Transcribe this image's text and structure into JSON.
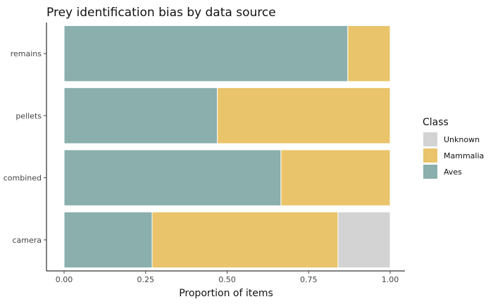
{
  "chart_data": {
    "type": "bar",
    "orientation": "horizontal",
    "stacked": true,
    "title": "Prey identification bias by data source",
    "xlabel": "Proportion of items",
    "ylabel": "",
    "xlim": [
      0,
      1
    ],
    "x_ticks": [
      "0.00",
      "0.25",
      "0.50",
      "0.75",
      "1.00"
    ],
    "categories": [
      "remains",
      "pellets",
      "combined",
      "camera"
    ],
    "series": [
      {
        "name": "Aves",
        "color": "#8AAFAD",
        "values": [
          0.87,
          0.47,
          0.665,
          0.27
        ]
      },
      {
        "name": "Mammalia",
        "color": "#E9C46A",
        "values": [
          0.13,
          0.53,
          0.335,
          0.57
        ]
      },
      {
        "name": "Unknown",
        "color": "#D3D3D3",
        "values": [
          0.0,
          0.0,
          0.0,
          0.16
        ]
      }
    ],
    "legend": {
      "title": "Class",
      "position": "right",
      "order": [
        "Unknown",
        "Mammalia",
        "Aves"
      ]
    },
    "grid": false
  }
}
